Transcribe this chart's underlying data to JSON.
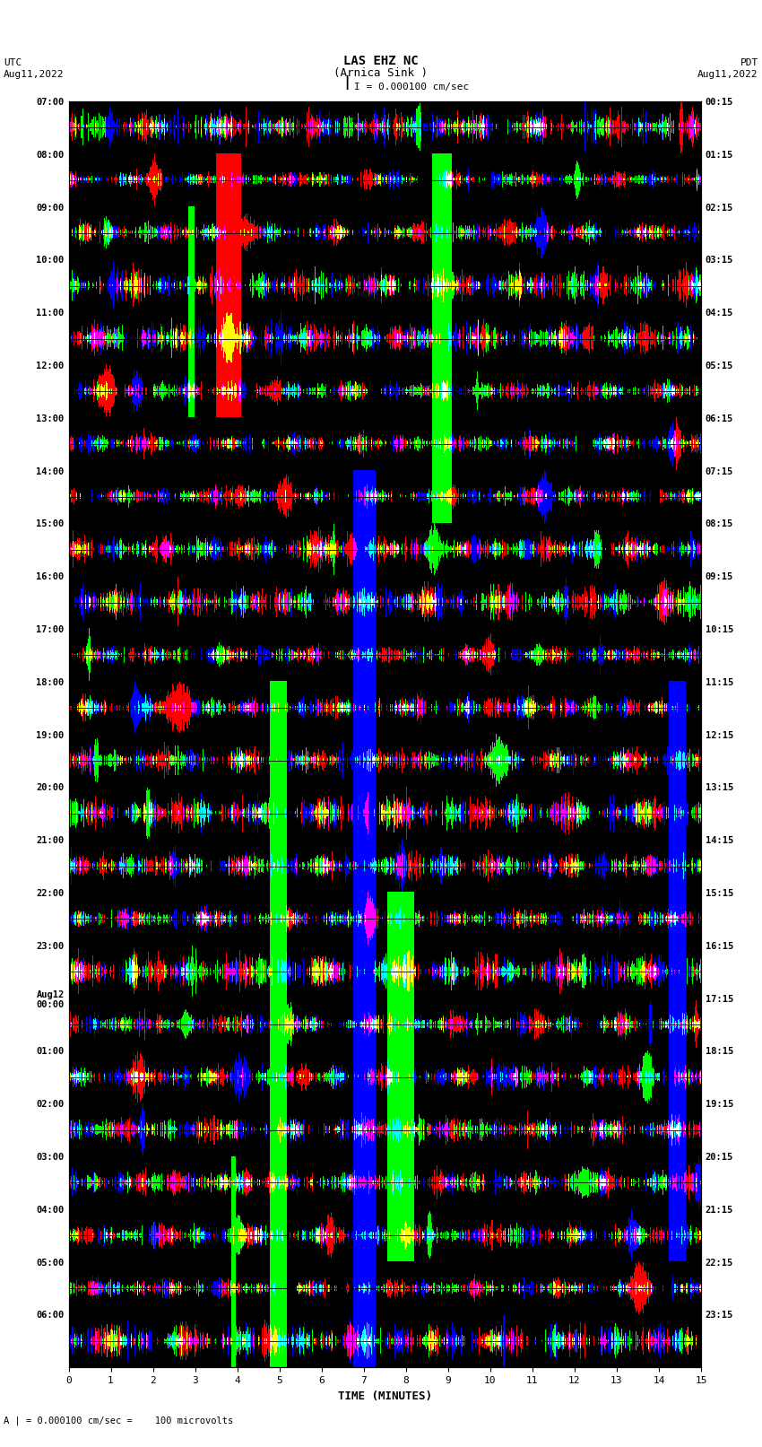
{
  "title_line1": "LAS EHZ NC",
  "title_line2": "(Arnica Sink )",
  "scale_label": "I = 0.000100 cm/sec",
  "left_label_line1": "UTC",
  "left_label_line2": "Aug11,2022",
  "right_label_line1": "PDT",
  "right_label_line2": "Aug11,2022",
  "bottom_label": "A | = 0.000100 cm/sec =    100 microvolts",
  "xlabel": "TIME (MINUTES)",
  "utc_times": [
    "07:00",
    "08:00",
    "09:00",
    "10:00",
    "11:00",
    "12:00",
    "13:00",
    "14:00",
    "15:00",
    "16:00",
    "17:00",
    "18:00",
    "19:00",
    "20:00",
    "21:00",
    "22:00",
    "23:00",
    "Aug12\n00:00",
    "01:00",
    "02:00",
    "03:00",
    "04:00",
    "05:00",
    "06:00"
  ],
  "pdt_times": [
    "00:15",
    "01:15",
    "02:15",
    "03:15",
    "04:15",
    "05:15",
    "06:15",
    "07:15",
    "08:15",
    "09:15",
    "10:15",
    "11:15",
    "12:15",
    "13:15",
    "14:15",
    "15:15",
    "16:15",
    "17:15",
    "18:15",
    "19:15",
    "20:15",
    "21:15",
    "22:15",
    "23:15"
  ],
  "n_minutes": 15,
  "n_rows": 24,
  "background_color": "#000000",
  "fig_bg": "#ffffff",
  "seed": 42
}
